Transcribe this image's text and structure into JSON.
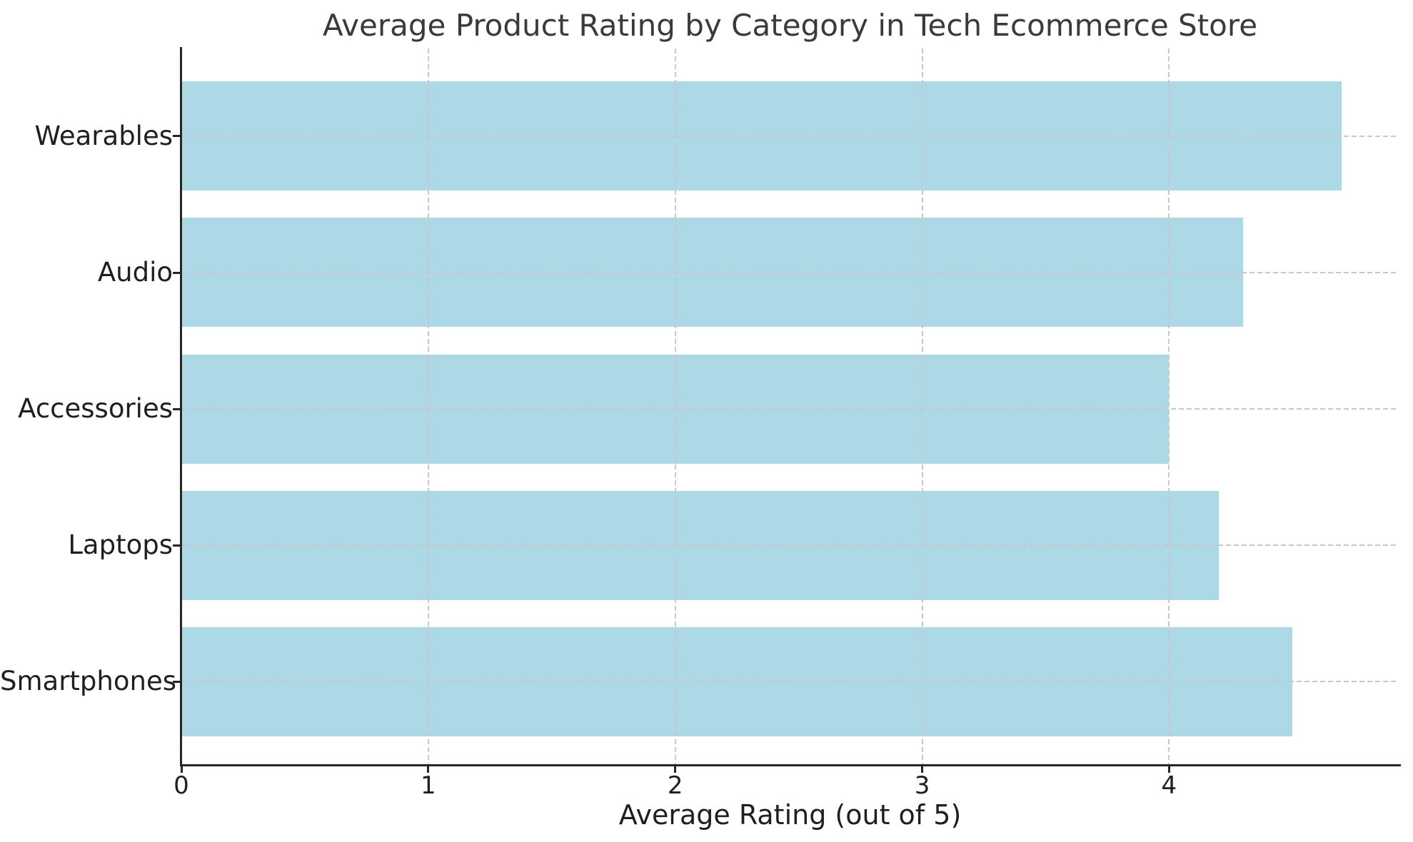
{
  "chart_data": {
    "type": "bar",
    "orientation": "horizontal",
    "title": "Average Product Rating by Category in Tech Ecommerce Store",
    "xlabel": "Average Rating (out of 5)",
    "ylabel": "",
    "categories": [
      "Wearables",
      "Audio",
      "Accessories",
      "Laptops",
      "Smartphones"
    ],
    "values": [
      4.7,
      4.3,
      4.0,
      4.2,
      4.5
    ],
    "x_ticks": [
      0,
      1,
      2,
      3,
      4
    ],
    "xlim": [
      0,
      4.93
    ],
    "categories_order": "top-to-bottom as displayed",
    "grid": "dashed light-gray gridlines on both axes, drawn over bars",
    "legend_position": "none",
    "bar_color": "#ADD8E6",
    "background_color": "#FFFFFF",
    "title_color": "#3A3A3A",
    "text_color": "#1F1F1F",
    "spine_color": "#262626",
    "grid_color": "#C8C8C8"
  }
}
